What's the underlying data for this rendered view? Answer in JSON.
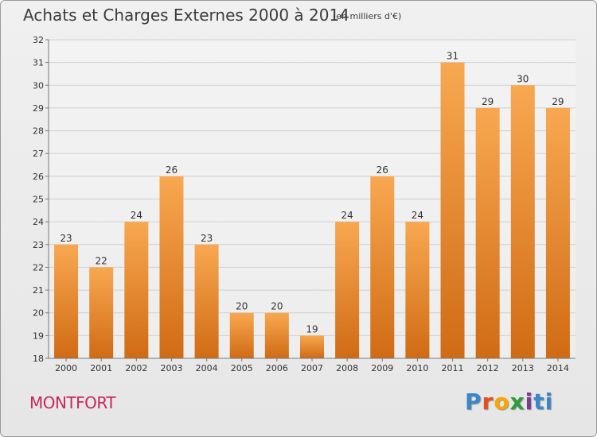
{
  "header": {
    "title": "Achats et Charges Externes 2000 à 2014",
    "subtitle": "(en milliers d'€)"
  },
  "footer": {
    "commune": "MONTFORT",
    "logo": [
      "P",
      "r",
      "o",
      "x",
      "i",
      "t",
      "i"
    ]
  },
  "colors": {
    "bar_top": "#f8a851",
    "bar_bottom": "#d06b14",
    "commune": "#c8285a"
  },
  "chart_data": {
    "type": "bar",
    "title": "Achats et Charges Externes 2000 à 2014",
    "subtitle": "(en milliers d'€)",
    "xlabel": "",
    "ylabel": "",
    "categories": [
      "2000",
      "2001",
      "2002",
      "2003",
      "2004",
      "2005",
      "2006",
      "2007",
      "2008",
      "2009",
      "2010",
      "2011",
      "2012",
      "2013",
      "2014"
    ],
    "values": [
      23,
      22,
      24,
      26,
      23,
      20,
      20,
      19,
      24,
      26,
      24,
      31,
      29,
      30,
      29
    ],
    "data_labels": [
      "23",
      "22",
      "24",
      "26",
      "23",
      "20",
      "20",
      "19",
      "24",
      "26",
      "24",
      "31",
      "29",
      "30",
      "29"
    ],
    "ylim": [
      18,
      32
    ],
    "yticks": [
      "18",
      "19",
      "20",
      "21",
      "22",
      "23",
      "24",
      "25",
      "26",
      "27",
      "28",
      "29",
      "30",
      "31",
      "32"
    ],
    "grid": true,
    "legend": "none"
  }
}
